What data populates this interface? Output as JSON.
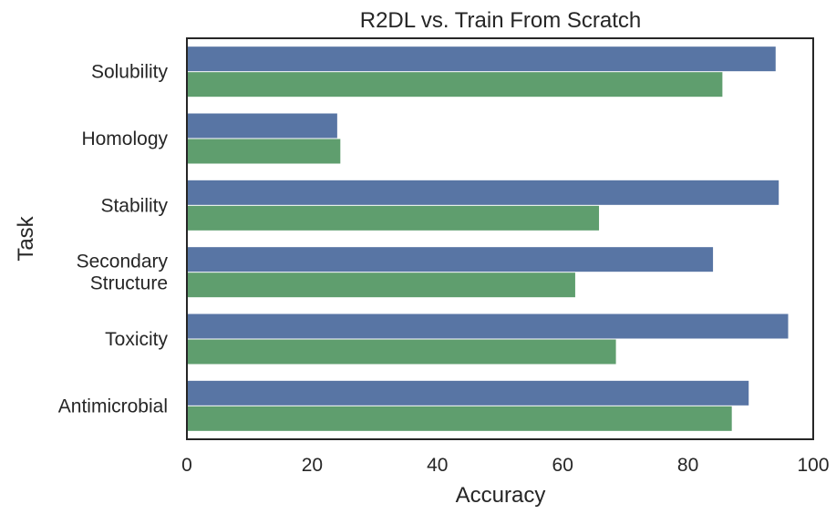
{
  "chart_data": {
    "type": "bar",
    "orientation": "horizontal",
    "title": "R2DL vs. Train From Scratch",
    "xlabel": "Accuracy",
    "ylabel": "Task",
    "xlim": [
      0,
      100
    ],
    "xticks": [
      "0",
      "20",
      "40",
      "60",
      "80",
      "100"
    ],
    "categories": [
      [
        "Solubility"
      ],
      [
        "Homology"
      ],
      [
        "Stability"
      ],
      [
        "Secondary",
        "Structure"
      ],
      [
        "Toxicity"
      ],
      [
        "Antimicrobial"
      ]
    ],
    "series": [
      {
        "color": "#5875a4",
        "values": [
          94,
          24,
          94.5,
          84,
          96,
          89.7
        ]
      },
      {
        "color": "#5f9e6e",
        "values": [
          85.5,
          24.5,
          65.8,
          62,
          68.5,
          87
        ]
      }
    ],
    "grid": false,
    "legend": "none"
  }
}
